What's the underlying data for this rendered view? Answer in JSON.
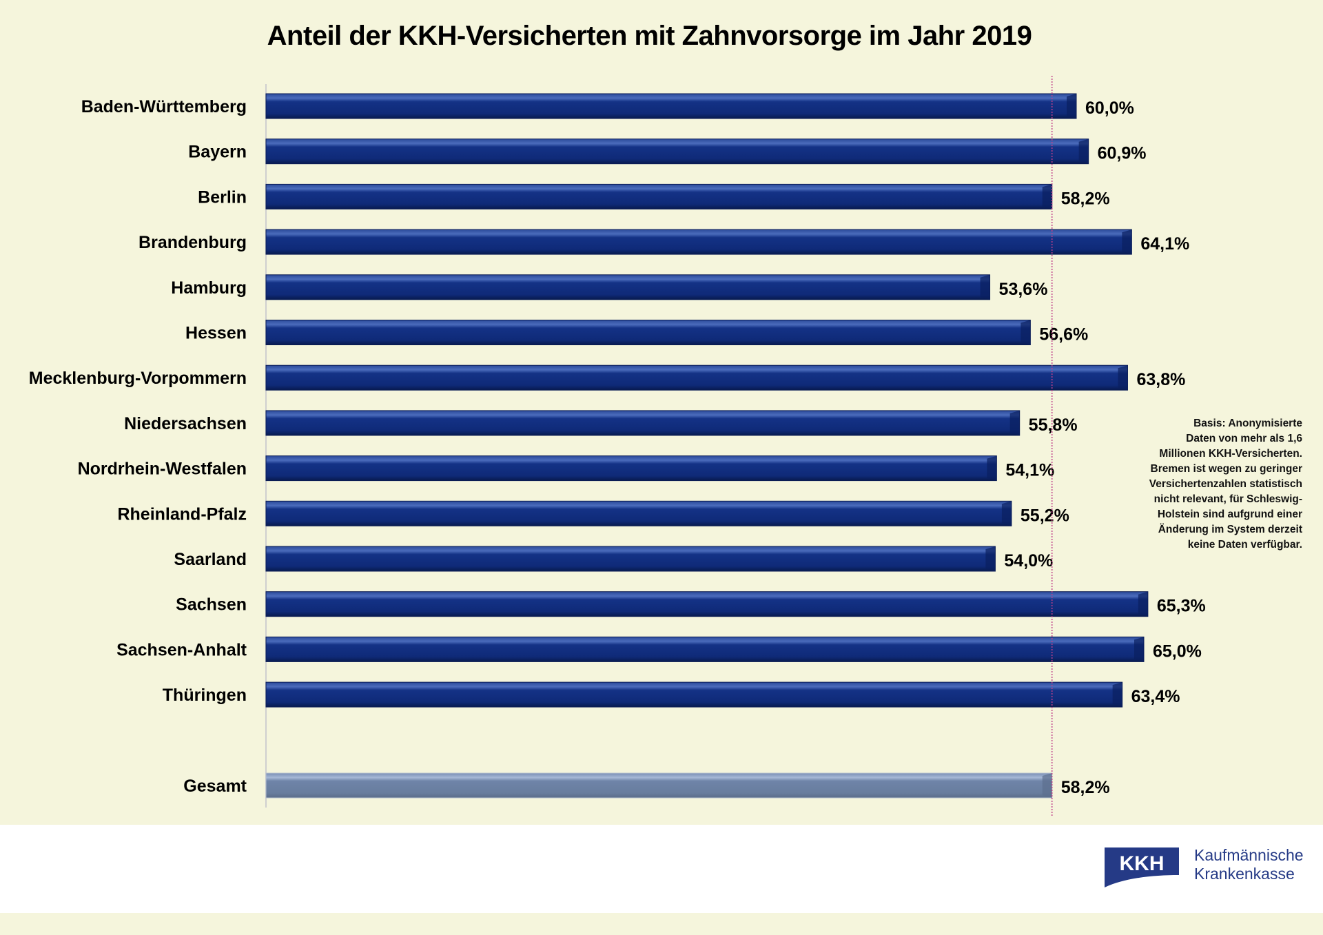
{
  "chart_data": {
    "type": "bar",
    "orientation": "horizontal",
    "title": "Anteil der KKH-Versicherten mit Zahnvorsorge im Jahr 2019",
    "xlabel": "",
    "ylabel": "",
    "xlim": [
      0,
      70
    ],
    "grid": false,
    "categories": [
      "Baden-Württemberg",
      "Bayern",
      "Berlin",
      "Brandenburg",
      "Hamburg",
      "Hessen",
      "Mecklenburg-Vorpommern",
      "Niedersachsen",
      "Nordrhein-Westfalen",
      "Rheinland-Pfalz",
      "Saarland",
      "Sachsen",
      "Sachsen-Anhalt",
      "Thüringen",
      "Gesamt"
    ],
    "values": [
      60.0,
      60.9,
      58.2,
      64.1,
      53.6,
      56.6,
      63.8,
      55.8,
      54.1,
      55.2,
      54.0,
      65.3,
      65.0,
      63.4,
      58.2
    ],
    "value_labels": [
      "60,0%",
      "60,9%",
      "58,2%",
      "64,1%",
      "53,6%",
      "56,6%",
      "63,8%",
      "55,8%",
      "54,1%",
      "55,2%",
      "54,0%",
      "65,3%",
      "65,0%",
      "63,4%",
      "58,2%"
    ],
    "reference_line": {
      "value": 58.2,
      "style": "dotted",
      "color": "#c0408a"
    },
    "colors": {
      "bar": "#0f2a78",
      "bar_highlight": "#3a5aa8",
      "total_bar": "#6a7fa0",
      "total_highlight": "#9fb2d0"
    },
    "total_category": "Gesamt"
  },
  "note": {
    "lines": [
      "Basis: Anonymisierte",
      "Daten von mehr als 1,6",
      "Millionen KKH-Versicherten.",
      "Bremen ist wegen zu geringer",
      "Versichertenzahlen statistisch",
      "nicht relevant, für Schleswig-",
      "Holstein sind aufgrund einer",
      "Änderung im System derzeit",
      "keine Daten verfügbar."
    ]
  },
  "logo": {
    "mark": "KKH",
    "line1": "Kaufmännische",
    "line2": "Krankenkasse",
    "color": "#253a86"
  }
}
